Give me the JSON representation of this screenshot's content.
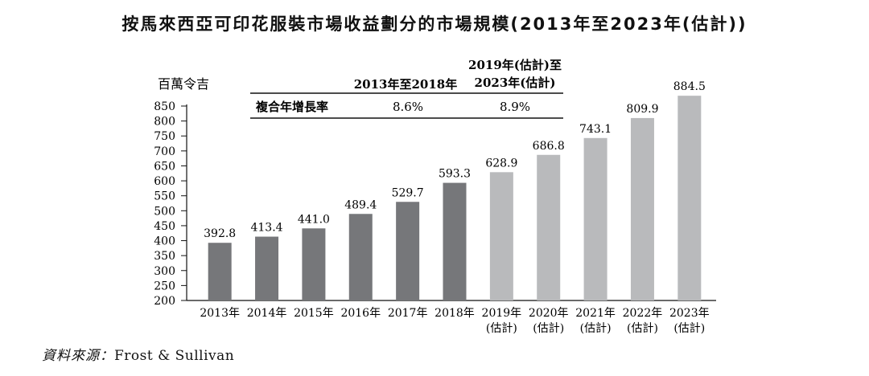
{
  "chart_data": {
    "type": "bar",
    "title": "按馬來西亞可印花服裝市場收益劃分的市場規模(2013年至2023年(估計))",
    "ylabel": "百萬令吉",
    "ylim": [
      200,
      850
    ],
    "yticks": [
      "200",
      "250",
      "300",
      "350",
      "400",
      "450",
      "500",
      "550",
      "600",
      "650",
      "700",
      "750",
      "800",
      "850"
    ],
    "categories": [
      {
        "year": "2013年",
        "note": ""
      },
      {
        "year": "2014年",
        "note": ""
      },
      {
        "year": "2015年",
        "note": ""
      },
      {
        "year": "2016年",
        "note": ""
      },
      {
        "year": "2017年",
        "note": ""
      },
      {
        "year": "2018年",
        "note": ""
      },
      {
        "year": "2019年",
        "note": "(估計)"
      },
      {
        "year": "2020年",
        "note": "(估計)"
      },
      {
        "year": "2021年",
        "note": "(估計)"
      },
      {
        "year": "2022年",
        "note": "(估計)"
      },
      {
        "year": "2023年",
        "note": "(估計)"
      }
    ],
    "values": [
      392.8,
      413.4,
      441.0,
      489.4,
      529.7,
      593.3,
      628.9,
      686.8,
      743.1,
      809.9,
      884.5
    ],
    "value_labels": [
      "392.8",
      "413.4",
      "441.0",
      "489.4",
      "529.7",
      "593.3",
      "628.9",
      "686.8",
      "743.1",
      "809.9",
      "884.5"
    ],
    "colors": {
      "historical": "#76777a",
      "estimated": "#b9babc"
    },
    "historical_count": 6,
    "cagr_table": {
      "period1_label": "2013年至2018年",
      "period2_label_line1": "2019年(估計)至",
      "period2_label_line2": "2023年(估計)",
      "row_label": "複合年增長率",
      "period1_value": "8.6%",
      "period2_value": "8.9%"
    }
  },
  "source": {
    "label": "資料來源：",
    "value": "Frost & Sullivan"
  }
}
